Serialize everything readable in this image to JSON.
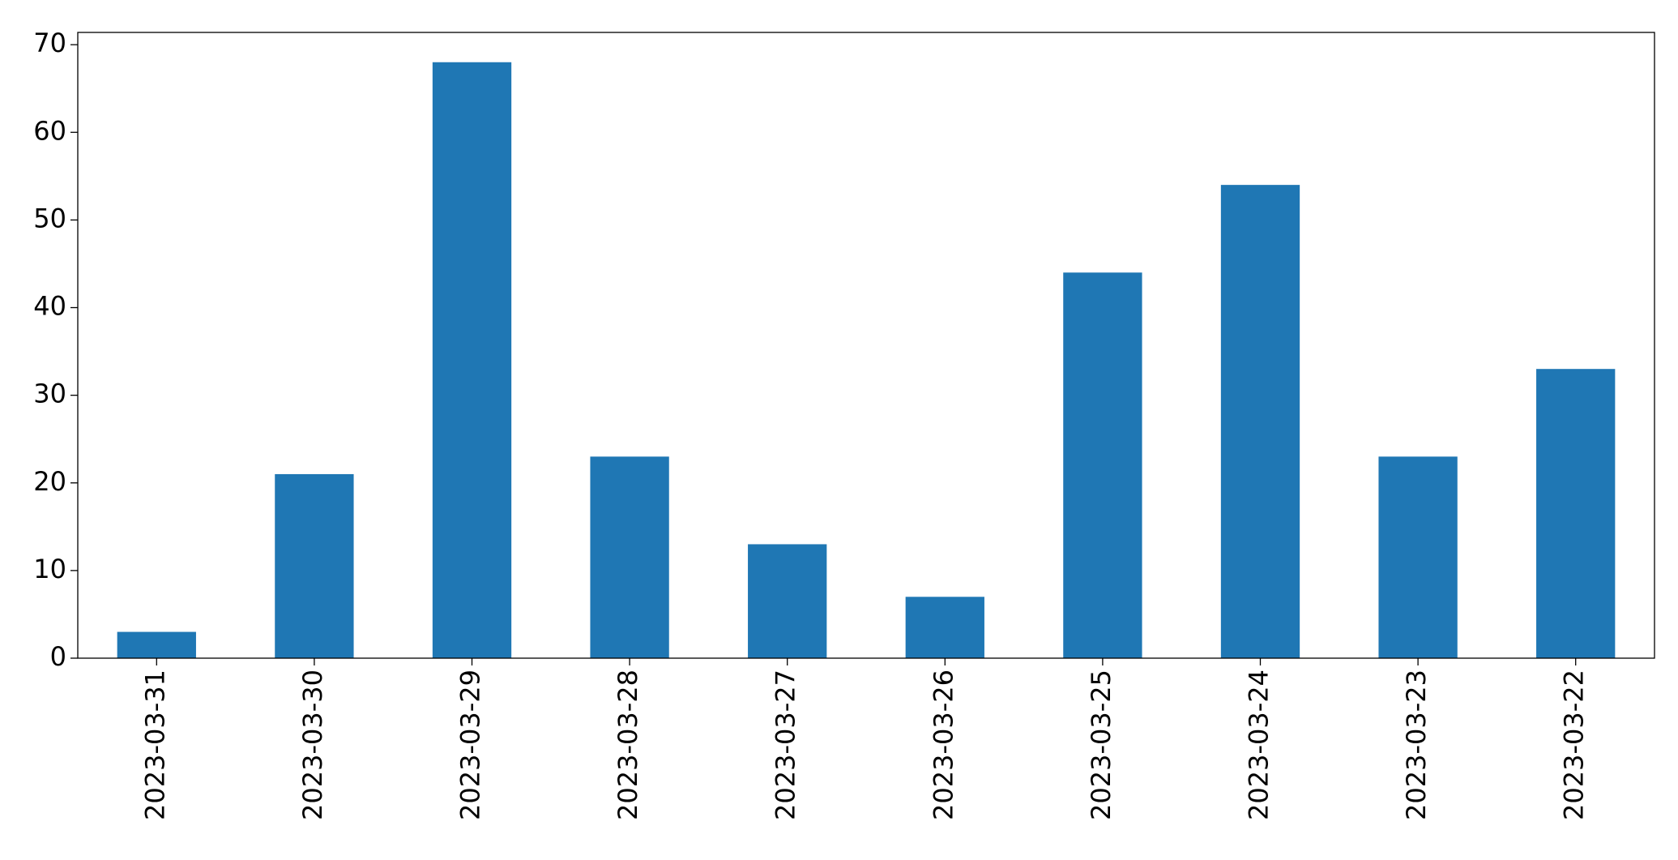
{
  "chart_data": {
    "type": "bar",
    "categories": [
      "2023-03-31",
      "2023-03-30",
      "2023-03-29",
      "2023-03-28",
      "2023-03-27",
      "2023-03-26",
      "2023-03-25",
      "2023-03-24",
      "2023-03-23",
      "2023-03-22"
    ],
    "values": [
      3,
      21,
      68,
      23,
      13,
      7,
      44,
      54,
      23,
      33
    ],
    "color": "#1f77b4",
    "ylim": [
      0,
      71.4
    ],
    "yticks": [
      0,
      10,
      20,
      30,
      40,
      50,
      60,
      70
    ],
    "grid": false
  }
}
